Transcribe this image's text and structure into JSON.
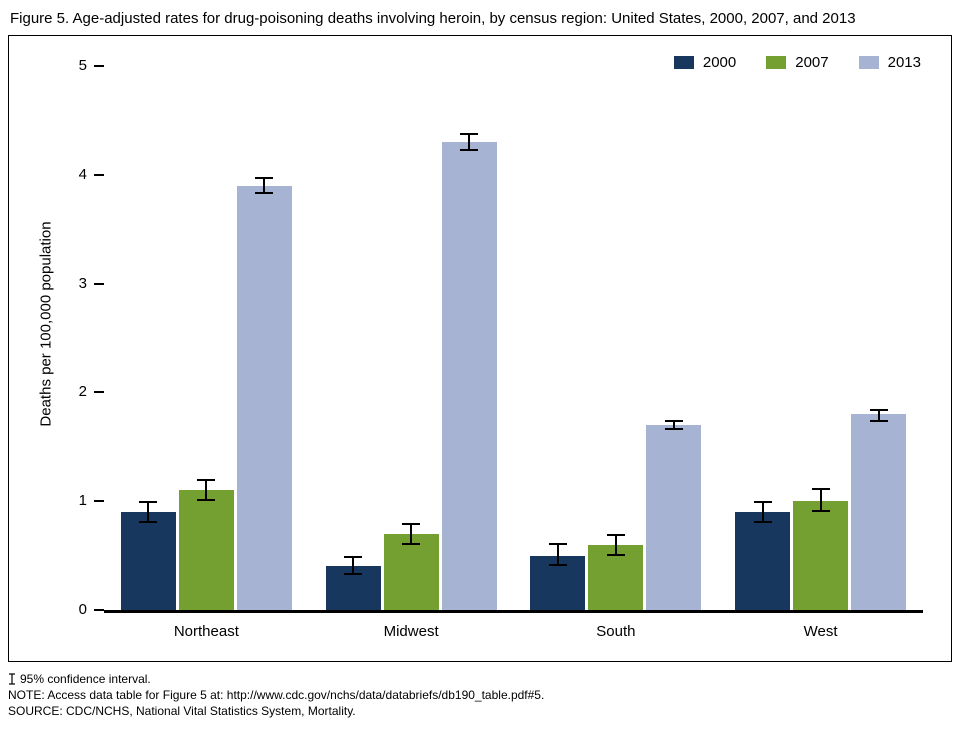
{
  "title": "Figure 5. Age-adjusted rates for drug-poisoning deaths involving heroin, by census region: United States, 2000, 2007, and 2013",
  "chart_data": {
    "type": "bar",
    "title": "Age-adjusted rates for drug-poisoning deaths involving heroin, by census region: United States, 2000, 2007, and 2013",
    "xlabel": "",
    "ylabel": "Deaths per 100,000 population",
    "ylim": [
      0,
      5
    ],
    "ytick_step": 1,
    "grid": false,
    "error_bars": true,
    "legend_position": "top-right",
    "categories": [
      "Northeast",
      "Midwest",
      "South",
      "West"
    ],
    "series": [
      {
        "name": "2000",
        "color": "#17375e",
        "values": [
          0.9,
          0.4,
          0.5,
          0.9
        ],
        "ci_low": [
          0.8,
          0.32,
          0.4,
          0.8
        ],
        "ci_high": [
          1.0,
          0.5,
          0.62,
          1.0
        ]
      },
      {
        "name": "2007",
        "color": "#74a032",
        "values": [
          1.1,
          0.7,
          0.6,
          1.0
        ],
        "ci_low": [
          1.0,
          0.6,
          0.5,
          0.9
        ],
        "ci_high": [
          1.2,
          0.8,
          0.7,
          1.12
        ]
      },
      {
        "name": "2013",
        "color": "#a7b3d3",
        "values": [
          3.9,
          4.3,
          1.7,
          1.8
        ],
        "ci_low": [
          3.82,
          4.22,
          1.65,
          1.73
        ],
        "ci_high": [
          3.98,
          4.38,
          1.75,
          1.85
        ]
      }
    ]
  },
  "footnotes": {
    "ci": "95% confidence interval.",
    "note": "NOTE: Access data table for Figure 5 at: http://www.cdc.gov/nchs/data/databriefs/db190_table.pdf#5.",
    "source": "SOURCE: CDC/NCHS, National Vital Statistics System, Mortality."
  }
}
